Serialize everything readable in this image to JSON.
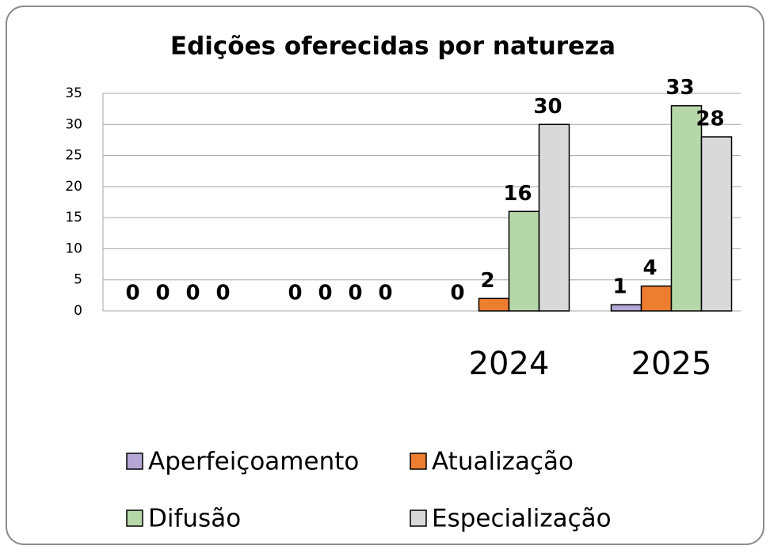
{
  "chart_data": {
    "type": "bar",
    "title": "Edições oferecidas por natureza",
    "categories": [
      null,
      null,
      "2024",
      "2025"
    ],
    "series": [
      {
        "name": "Aperfeiçoamento",
        "color": "#b4a7d6",
        "values": [
          0,
          0,
          0,
          1
        ]
      },
      {
        "name": "Atualização",
        "color": "#ed7d31",
        "values": [
          0,
          0,
          2,
          4
        ]
      },
      {
        "name": "Difusão",
        "color": "#b6d7a8",
        "values": [
          0,
          0,
          16,
          33
        ]
      },
      {
        "name": "Especialização",
        "color": "#d9d9d9",
        "values": [
          0,
          0,
          30,
          28
        ]
      }
    ],
    "ylim": [
      0,
      35
    ],
    "yticks": [
      0,
      5,
      10,
      15,
      20,
      25,
      30,
      35
    ],
    "grid": true,
    "legend": "bottom"
  }
}
